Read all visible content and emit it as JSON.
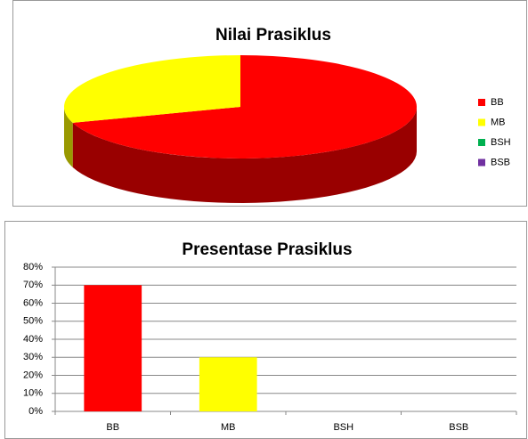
{
  "chart_data": [
    {
      "type": "pie",
      "title": "Nilai Prasiklus",
      "categories": [
        "BB",
        "MB",
        "BSH",
        "BSB"
      ],
      "values": [
        70,
        30,
        0,
        0
      ],
      "colors": [
        "#ff0000",
        "#ffff00",
        "#00b050",
        "#7030a0"
      ],
      "legend": "right"
    },
    {
      "type": "bar",
      "title": "Presentase Prasiklus",
      "categories": [
        "BB",
        "MB",
        "BSH",
        "BSB"
      ],
      "values": [
        70,
        30,
        0,
        0
      ],
      "colors": [
        "#ff0000",
        "#ffff00",
        "#00b050",
        "#7030a0"
      ],
      "ylim": [
        0,
        80
      ],
      "yticks": [
        {
          "value": 0,
          "label": "0%"
        },
        {
          "value": 10,
          "label": "10%"
        },
        {
          "value": 20,
          "label": "20%"
        },
        {
          "value": 30,
          "label": "30%"
        },
        {
          "value": 40,
          "label": "40%"
        },
        {
          "value": 50,
          "label": "50%"
        },
        {
          "value": 60,
          "label": "60%"
        },
        {
          "value": 70,
          "label": "70%"
        },
        {
          "value": 80,
          "label": "80%"
        }
      ],
      "grid": true
    }
  ]
}
